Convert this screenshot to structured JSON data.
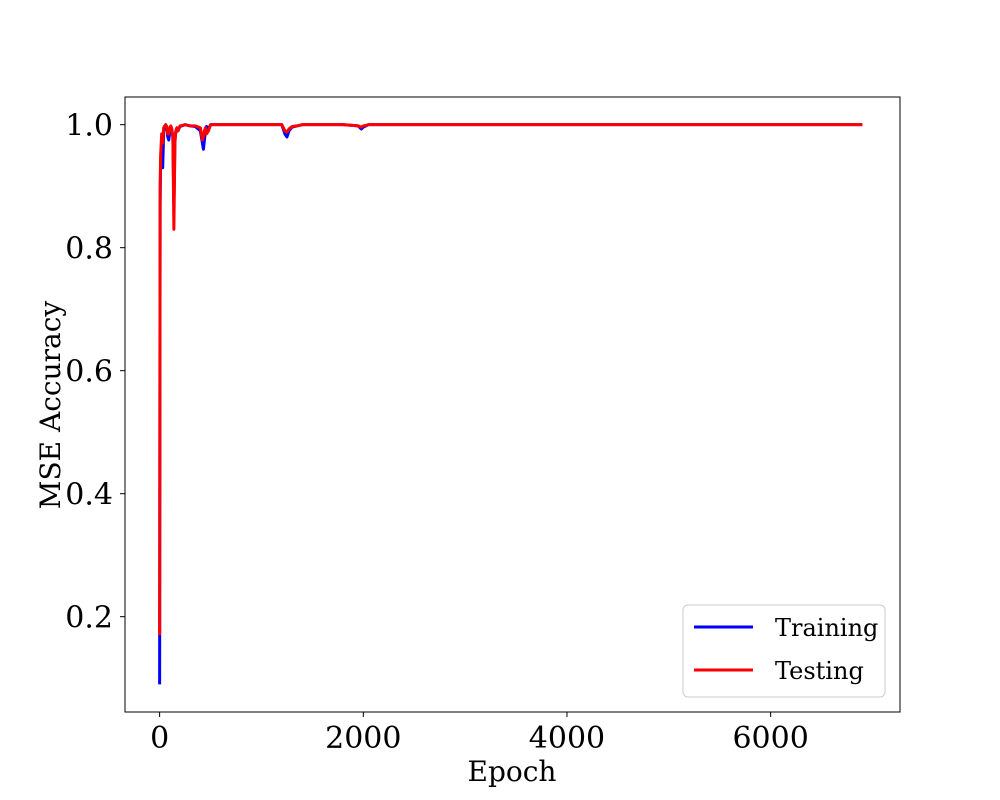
{
  "chart_data": {
    "type": "line",
    "xlabel": "Epoch",
    "ylabel": "MSE Accuracy",
    "xlim": [
      -340,
      7270
    ],
    "ylim": [
      0.045,
      1.045
    ],
    "xticks": [
      0,
      2000,
      4000,
      6000
    ],
    "xtick_labels": [
      "0",
      "2000",
      "4000",
      "6000"
    ],
    "yticks": [
      0.2,
      0.4,
      0.6,
      0.8,
      1.0
    ],
    "ytick_labels": [
      "0.2",
      "0.4",
      "0.6",
      "0.8",
      "1.0"
    ],
    "grid": false,
    "legend_position": "lower-right",
    "series": [
      {
        "name": "Training",
        "color": "#0000ff",
        "x": [
          0,
          5,
          10,
          20,
          30,
          40,
          50,
          60,
          70,
          80,
          90,
          100,
          110,
          120,
          130,
          140,
          145,
          150,
          160,
          170,
          180,
          200,
          250,
          300,
          350,
          400,
          410,
          420,
          430,
          440,
          450,
          460,
          480,
          500,
          600,
          800,
          1000,
          1200,
          1230,
          1250,
          1270,
          1300,
          1400,
          1500,
          1800,
          1950,
          1980,
          2000,
          2050,
          2200,
          3000,
          4000,
          5000,
          6000,
          6900
        ],
        "y": [
          0.09,
          0.87,
          0.94,
          0.97,
          0.93,
          0.99,
          0.995,
          1.0,
          0.995,
          0.98,
          0.975,
          0.99,
          0.995,
          0.99,
          0.98,
          0.87,
          0.91,
          0.975,
          0.99,
          0.995,
          0.99,
          0.997,
          1.0,
          0.998,
          0.997,
          0.99,
          0.98,
          0.97,
          0.96,
          0.975,
          0.99,
          0.997,
          0.993,
          1.0,
          1.0,
          1.0,
          1.0,
          1.0,
          0.985,
          0.98,
          0.99,
          0.996,
          1.0,
          1.0,
          1.0,
          0.998,
          0.993,
          0.996,
          1.0,
          1.0,
          1.0,
          1.0,
          1.0,
          1.0,
          1.0
        ]
      },
      {
        "name": "Testing",
        "color": "#ff0000",
        "x": [
          0,
          5,
          10,
          20,
          30,
          40,
          50,
          60,
          70,
          80,
          90,
          100,
          110,
          120,
          130,
          140,
          145,
          150,
          160,
          170,
          180,
          200,
          250,
          300,
          350,
          400,
          410,
          420,
          430,
          440,
          450,
          460,
          480,
          500,
          600,
          800,
          1000,
          1200,
          1230,
          1250,
          1270,
          1300,
          1350,
          1400,
          1500,
          1800,
          1950,
          1980,
          2000,
          2050,
          2200,
          3000,
          4000,
          5000,
          6000,
          6900
        ],
        "y": [
          0.17,
          0.9,
          0.95,
          0.985,
          0.97,
          0.995,
          0.998,
          1.0,
          0.997,
          0.985,
          0.985,
          0.995,
          0.998,
          0.993,
          0.98,
          0.83,
          0.9,
          0.97,
          0.99,
          0.995,
          0.99,
          0.998,
          1.0,
          0.998,
          0.998,
          0.995,
          0.985,
          0.975,
          0.98,
          0.99,
          0.995,
          0.985,
          0.99,
          1.0,
          1.0,
          1.0,
          1.0,
          1.0,
          0.99,
          0.988,
          0.993,
          0.997,
          0.998,
          1.0,
          1.0,
          1.0,
          0.998,
          0.996,
          0.998,
          1.0,
          1.0,
          1.0,
          1.0,
          1.0,
          1.0,
          1.0
        ]
      }
    ]
  }
}
